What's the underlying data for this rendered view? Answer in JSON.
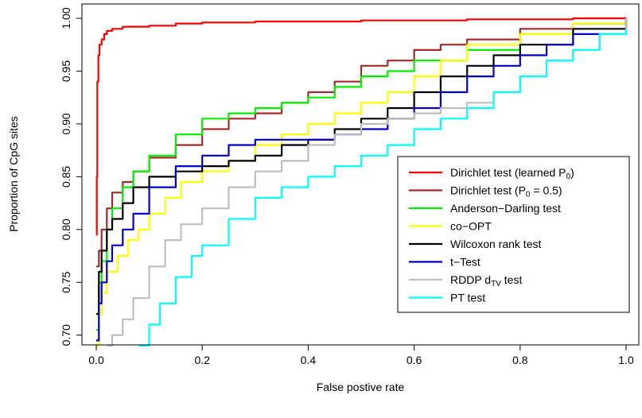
{
  "chart_data": {
    "type": "line",
    "title": "",
    "xlabel": "False postive rate",
    "ylabel": "Proportion of CpG sites",
    "xlim": [
      0,
      1
    ],
    "ylim": [
      0.69,
      1.0
    ],
    "xticks": [
      0.0,
      0.2,
      0.4,
      0.6,
      0.8,
      1.0
    ],
    "xtick_labels": [
      "0.0",
      "0.2",
      "0.4",
      "0.6",
      "0.8",
      "1.0"
    ],
    "yticks": [
      0.7,
      0.75,
      0.8,
      0.85,
      0.9,
      0.95,
      1.0
    ],
    "ytick_labels": [
      "0.70",
      "0.75",
      "0.80",
      "0.85",
      "0.90",
      "0.95",
      "1.00"
    ],
    "grid": false,
    "legend_position": "right",
    "series": [
      {
        "name": "Dirichlet test (learned P",
        "name_sub": "0",
        "name_after": ")",
        "color": "#ff0000",
        "x": [
          0.0,
          0.001,
          0.002,
          0.004,
          0.006,
          0.01,
          0.015,
          0.02,
          0.03,
          0.05,
          0.1,
          0.15,
          0.2,
          0.3,
          0.5,
          0.7,
          0.9,
          1.0
        ],
        "y": [
          0.795,
          0.85,
          0.94,
          0.965,
          0.975,
          0.98,
          0.985,
          0.988,
          0.99,
          0.992,
          0.993,
          0.995,
          0.996,
          0.997,
          0.998,
          0.999,
          1.0,
          1.0
        ]
      },
      {
        "name": "Dirichlet test (P",
        "name_sub": "0",
        "name_after": " = 0.5)",
        "color": "#a52a2a",
        "x": [
          0.0,
          0.005,
          0.01,
          0.02,
          0.03,
          0.05,
          0.07,
          0.1,
          0.15,
          0.2,
          0.25,
          0.3,
          0.35,
          0.4,
          0.45,
          0.5,
          0.55,
          0.6,
          0.65,
          0.7,
          0.8,
          0.9,
          1.0
        ],
        "y": [
          0.765,
          0.78,
          0.8,
          0.82,
          0.835,
          0.845,
          0.855,
          0.868,
          0.88,
          0.895,
          0.905,
          0.91,
          0.92,
          0.93,
          0.94,
          0.955,
          0.96,
          0.97,
          0.975,
          0.98,
          0.99,
          0.995,
          1.0
        ]
      },
      {
        "name": "Anderson−Darling test",
        "color": "#00ee00",
        "x": [
          0.0,
          0.005,
          0.01,
          0.02,
          0.03,
          0.05,
          0.07,
          0.1,
          0.15,
          0.2,
          0.25,
          0.3,
          0.35,
          0.4,
          0.45,
          0.5,
          0.55,
          0.6,
          0.7,
          0.8,
          0.9,
          1.0
        ],
        "y": [
          0.705,
          0.75,
          0.77,
          0.8,
          0.82,
          0.84,
          0.855,
          0.87,
          0.89,
          0.905,
          0.91,
          0.915,
          0.92,
          0.925,
          0.935,
          0.945,
          0.95,
          0.96,
          0.97,
          0.985,
          0.995,
          1.0
        ]
      },
      {
        "name": "co−OPT",
        "color": "#ffff00",
        "x": [
          0.0,
          0.005,
          0.01,
          0.02,
          0.04,
          0.06,
          0.08,
          0.1,
          0.13,
          0.16,
          0.2,
          0.25,
          0.3,
          0.35,
          0.4,
          0.45,
          0.5,
          0.55,
          0.6,
          0.65,
          0.7,
          0.8,
          0.9,
          1.0
        ],
        "y": [
          0.69,
          0.72,
          0.74,
          0.76,
          0.775,
          0.79,
          0.8,
          0.815,
          0.83,
          0.845,
          0.855,
          0.865,
          0.88,
          0.89,
          0.9,
          0.91,
          0.92,
          0.93,
          0.945,
          0.96,
          0.975,
          0.985,
          0.995,
          1.0
        ]
      },
      {
        "name": "Wilcoxon rank test",
        "color": "#000000",
        "x": [
          0.0,
          0.005,
          0.01,
          0.02,
          0.03,
          0.05,
          0.07,
          0.1,
          0.15,
          0.2,
          0.25,
          0.3,
          0.35,
          0.4,
          0.45,
          0.5,
          0.55,
          0.6,
          0.65,
          0.7,
          0.75,
          0.8,
          0.9,
          1.0
        ],
        "y": [
          0.72,
          0.76,
          0.78,
          0.8,
          0.81,
          0.825,
          0.84,
          0.85,
          0.855,
          0.86,
          0.865,
          0.87,
          0.88,
          0.885,
          0.895,
          0.905,
          0.915,
          0.93,
          0.945,
          0.955,
          0.965,
          0.975,
          0.99,
          1.0
        ]
      },
      {
        "name": "t−Test",
        "color": "#0000cc",
        "x": [
          0.0,
          0.005,
          0.01,
          0.02,
          0.03,
          0.05,
          0.07,
          0.1,
          0.15,
          0.2,
          0.25,
          0.3,
          0.35,
          0.4,
          0.45,
          0.5,
          0.55,
          0.6,
          0.65,
          0.7,
          0.75,
          0.8,
          0.85,
          0.9,
          1.0
        ],
        "y": [
          0.695,
          0.73,
          0.75,
          0.77,
          0.785,
          0.8,
          0.815,
          0.84,
          0.86,
          0.87,
          0.88,
          0.885,
          0.885,
          0.885,
          0.89,
          0.895,
          0.905,
          0.915,
          0.93,
          0.945,
          0.955,
          0.965,
          0.975,
          0.985,
          1.0
        ]
      },
      {
        "name": "RDDP d",
        "name_sub": "TV",
        "name_after": " test",
        "color": "#bebebe",
        "x": [
          0.02,
          0.03,
          0.05,
          0.07,
          0.1,
          0.13,
          0.16,
          0.2,
          0.25,
          0.3,
          0.35,
          0.4,
          0.45,
          0.5,
          0.55,
          0.6,
          0.65,
          0.7,
          0.75,
          0.8,
          0.85,
          0.9,
          0.95,
          1.0
        ],
        "y": [
          0.69,
          0.7,
          0.715,
          0.735,
          0.765,
          0.79,
          0.805,
          0.82,
          0.84,
          0.855,
          0.865,
          0.88,
          0.89,
          0.9,
          0.905,
          0.91,
          0.915,
          0.92,
          0.93,
          0.945,
          0.96,
          0.97,
          0.985,
          1.0
        ]
      },
      {
        "name": "PT test",
        "color": "#00ffff",
        "x": [
          0.08,
          0.1,
          0.12,
          0.15,
          0.18,
          0.2,
          0.25,
          0.3,
          0.35,
          0.4,
          0.45,
          0.5,
          0.55,
          0.6,
          0.65,
          0.7,
          0.75,
          0.8,
          0.85,
          0.9,
          0.95,
          1.0
        ],
        "y": [
          0.69,
          0.71,
          0.73,
          0.755,
          0.775,
          0.785,
          0.81,
          0.83,
          0.84,
          0.85,
          0.86,
          0.87,
          0.88,
          0.895,
          0.905,
          0.915,
          0.93,
          0.945,
          0.96,
          0.97,
          0.985,
          0.99
        ]
      }
    ]
  }
}
